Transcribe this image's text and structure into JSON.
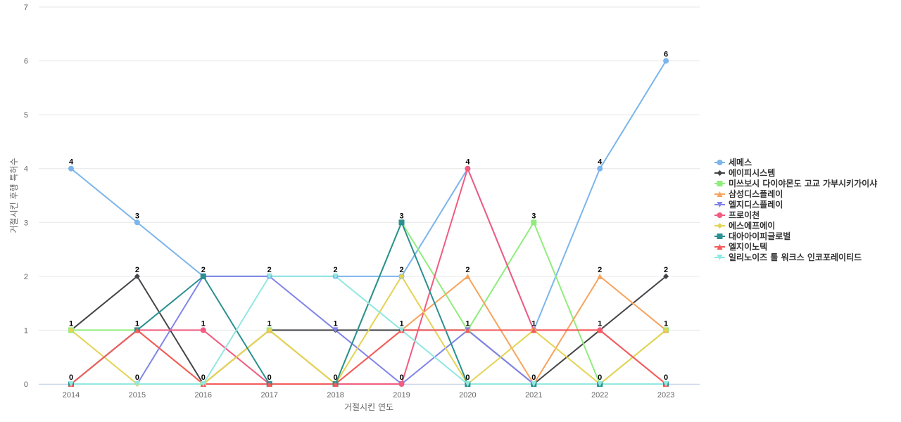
{
  "chart_data": {
    "type": "line",
    "title": "",
    "xlabel": "거절시킨 연도",
    "ylabel": "거절시킨 후행 특허수",
    "x": [
      "2014",
      "2015",
      "2016",
      "2017",
      "2018",
      "2019",
      "2020",
      "2021",
      "2022",
      "2023"
    ],
    "ylim": [
      0,
      7
    ],
    "yticks": [
      "0",
      "1",
      "2",
      "3",
      "4",
      "5",
      "6",
      "7"
    ],
    "grid": true,
    "legend_position": "right",
    "series": [
      {
        "name": "세메스",
        "color": "#7cb5ec",
        "marker": "circle",
        "values": [
          4,
          3,
          2,
          2,
          2,
          2,
          4,
          1,
          4,
          6
        ]
      },
      {
        "name": "에이피시스템",
        "color": "#434348",
        "marker": "diamond",
        "values": [
          1,
          2,
          0,
          1,
          1,
          1,
          1,
          0,
          1,
          2
        ]
      },
      {
        "name": "미쓰보시 다이야몬도 고교 가부시키가이샤",
        "color": "#90ed7d",
        "marker": "square",
        "values": [
          1,
          1,
          0,
          1,
          0,
          3,
          1,
          3,
          0,
          1
        ]
      },
      {
        "name": "삼성디스플레이",
        "color": "#f7a35c",
        "marker": "triangle",
        "values": [
          0,
          1,
          0,
          1,
          0,
          1,
          2,
          0,
          2,
          1
        ]
      },
      {
        "name": "엘지디스플레이",
        "color": "#8085e9",
        "marker": "triangle-down",
        "values": [
          0,
          0,
          2,
          2,
          1,
          0,
          1,
          0,
          0,
          0
        ]
      },
      {
        "name": "프로이천",
        "color": "#f15c80",
        "marker": "circle",
        "values": [
          0,
          1,
          1,
          0,
          0,
          0,
          4,
          1,
          1,
          0
        ]
      },
      {
        "name": "에스에프에이",
        "color": "#e4d354",
        "marker": "diamond",
        "values": [
          1,
          0,
          0,
          1,
          0,
          2,
          0,
          1,
          0,
          1
        ]
      },
      {
        "name": "대아아이피글로벌",
        "color": "#2b908f",
        "marker": "square",
        "values": [
          0,
          1,
          2,
          0,
          0,
          3,
          0,
          0,
          0,
          0
        ]
      },
      {
        "name": "엘지이노텍",
        "color": "#f45b5b",
        "marker": "triangle",
        "values": [
          0,
          1,
          0,
          0,
          0,
          1,
          1,
          1,
          1,
          0
        ]
      },
      {
        "name": "일리노이즈 툴 워크스 인코포레이티드",
        "color": "#91e8e1",
        "marker": "triangle-down",
        "values": [
          0,
          0,
          0,
          2,
          2,
          1,
          0,
          0,
          0,
          0
        ]
      }
    ],
    "data_labels": [
      {
        "x": "2014",
        "value": 4,
        "text": "4"
      },
      {
        "x": "2014",
        "value": 1,
        "text": "1"
      },
      {
        "x": "2014",
        "value": 0,
        "text": "0"
      },
      {
        "x": "2015",
        "value": 3,
        "text": "3"
      },
      {
        "x": "2015",
        "value": 2,
        "text": "2"
      },
      {
        "x": "2015",
        "value": 1,
        "text": "1"
      },
      {
        "x": "2015",
        "value": 0,
        "text": "0"
      },
      {
        "x": "2016",
        "value": 2,
        "text": "2"
      },
      {
        "x": "2016",
        "value": 1,
        "text": "1"
      },
      {
        "x": "2016",
        "value": 0,
        "text": "0"
      },
      {
        "x": "2017",
        "value": 2,
        "text": "2"
      },
      {
        "x": "2017",
        "value": 1,
        "text": "1"
      },
      {
        "x": "2017",
        "value": 0,
        "text": "0"
      },
      {
        "x": "2018",
        "value": 2,
        "text": "2"
      },
      {
        "x": "2018",
        "value": 1,
        "text": "1"
      },
      {
        "x": "2018",
        "value": 0,
        "text": "0"
      },
      {
        "x": "2019",
        "value": 3,
        "text": "3"
      },
      {
        "x": "2019",
        "value": 2,
        "text": "2"
      },
      {
        "x": "2019",
        "value": 1,
        "text": "1"
      },
      {
        "x": "2019",
        "value": 0,
        "text": "0"
      },
      {
        "x": "2020",
        "value": 4,
        "text": "4"
      },
      {
        "x": "2020",
        "value": 2,
        "text": "2"
      },
      {
        "x": "2020",
        "value": 1,
        "text": "1"
      },
      {
        "x": "2020",
        "value": 0,
        "text": "0"
      },
      {
        "x": "2021",
        "value": 3,
        "text": "3"
      },
      {
        "x": "2021",
        "value": 1,
        "text": "1"
      },
      {
        "x": "2021",
        "value": 0,
        "text": "0"
      },
      {
        "x": "2022",
        "value": 4,
        "text": "4"
      },
      {
        "x": "2022",
        "value": 2,
        "text": "2"
      },
      {
        "x": "2022",
        "value": 1,
        "text": "1"
      },
      {
        "x": "2022",
        "value": 0,
        "text": "0"
      },
      {
        "x": "2023",
        "value": 6,
        "text": "6"
      },
      {
        "x": "2023",
        "value": 2,
        "text": "2"
      },
      {
        "x": "2023",
        "value": 1,
        "text": "1"
      },
      {
        "x": "2023",
        "value": 0,
        "text": "0"
      }
    ]
  }
}
